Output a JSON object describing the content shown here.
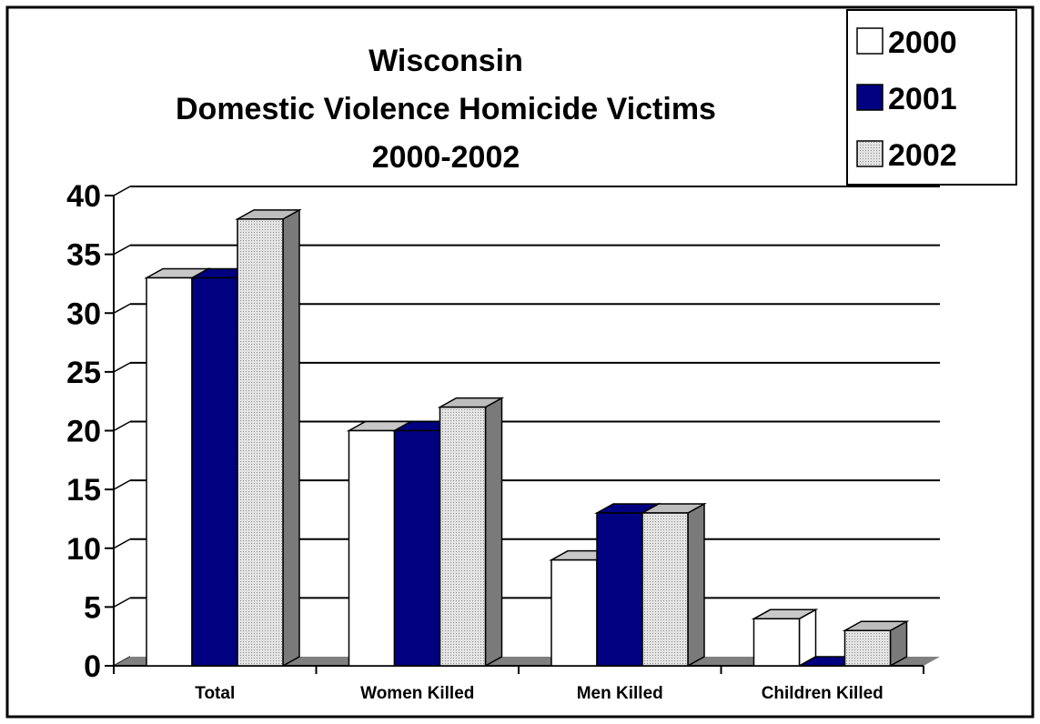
{
  "chart_data": {
    "type": "bar3d",
    "title": [
      "Wisconsin",
      "Domestic Violence Homicide Victims",
      "2000-2002"
    ],
    "categories": [
      "Total",
      "Women Killed",
      "Men Killed",
      "Children Killed"
    ],
    "series": [
      {
        "name": "2000",
        "color": "#ffffff",
        "values": [
          33,
          20,
          9,
          4
        ]
      },
      {
        "name": "2001",
        "color": "#000080",
        "values": [
          33,
          20,
          13,
          0
        ]
      },
      {
        "name": "2002",
        "color": "#d4d4d4",
        "values": [
          38,
          22,
          13,
          3
        ]
      }
    ],
    "ylim": [
      0,
      40
    ],
    "yticks": [
      0,
      5,
      10,
      15,
      20,
      25,
      30,
      35,
      40
    ],
    "grid": true,
    "legend": "top-right"
  }
}
